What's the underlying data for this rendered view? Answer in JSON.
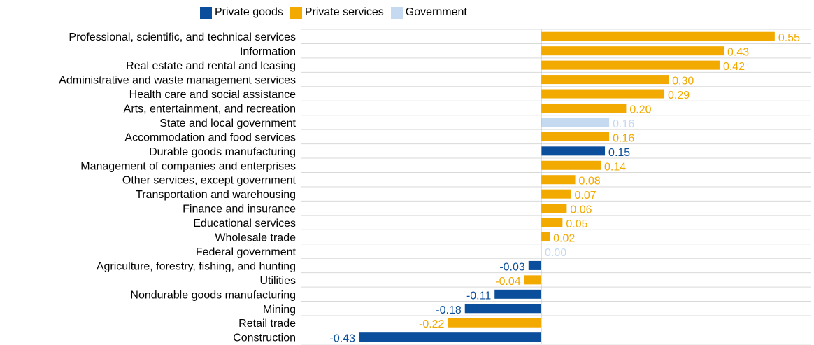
{
  "chart_data": {
    "type": "bar",
    "orientation": "horizontal",
    "title": "",
    "xlabel": "",
    "ylabel": "",
    "xlim": [
      -0.45,
      0.6
    ],
    "grid": true,
    "legend_position": "top",
    "legend": [
      {
        "name": "Private goods",
        "color": "#0b4f9c"
      },
      {
        "name": "Private services",
        "color": "#f2a900"
      },
      {
        "name": "Government",
        "color": "#c5d9f1"
      }
    ],
    "categories": [
      "Professional, scientific, and technical services",
      "Information",
      "Real estate and rental and leasing",
      "Administrative and waste management services",
      "Health care and social assistance",
      "Arts, entertainment, and recreation",
      "State and local government",
      "Accommodation and food services",
      "Durable goods manufacturing",
      "Management of companies and enterprises",
      "Other services, except government",
      "Transportation and warehousing",
      "Finance and insurance",
      "Educational services",
      "Wholesale trade",
      "Federal government",
      "Agriculture, forestry, fishing, and hunting",
      "Utilities",
      "Nondurable goods manufacturing",
      "Mining",
      "Retail trade",
      "Construction"
    ],
    "values": [
      0.55,
      0.43,
      0.42,
      0.3,
      0.29,
      0.2,
      0.16,
      0.16,
      0.15,
      0.14,
      0.08,
      0.07,
      0.06,
      0.05,
      0.02,
      0.0,
      -0.03,
      -0.04,
      -0.11,
      -0.18,
      -0.22,
      -0.43
    ],
    "value_labels": [
      "0.55",
      "0.43",
      "0.42",
      "0.30",
      "0.29",
      "0.20",
      "0.16",
      "0.16",
      "0.15",
      "0.14",
      "0.08",
      "0.07",
      "0.06",
      "0.05",
      "0.02",
      "0.00",
      "-0.03",
      "-0.04",
      "-0.11",
      "-0.18",
      "-0.22",
      "-0.43"
    ],
    "groups": [
      "Private services",
      "Private services",
      "Private services",
      "Private services",
      "Private services",
      "Private services",
      "Government",
      "Private services",
      "Private goods",
      "Private services",
      "Private services",
      "Private services",
      "Private services",
      "Private services",
      "Private services",
      "Government",
      "Private goods",
      "Private services",
      "Private goods",
      "Private goods",
      "Private services",
      "Private goods"
    ]
  }
}
